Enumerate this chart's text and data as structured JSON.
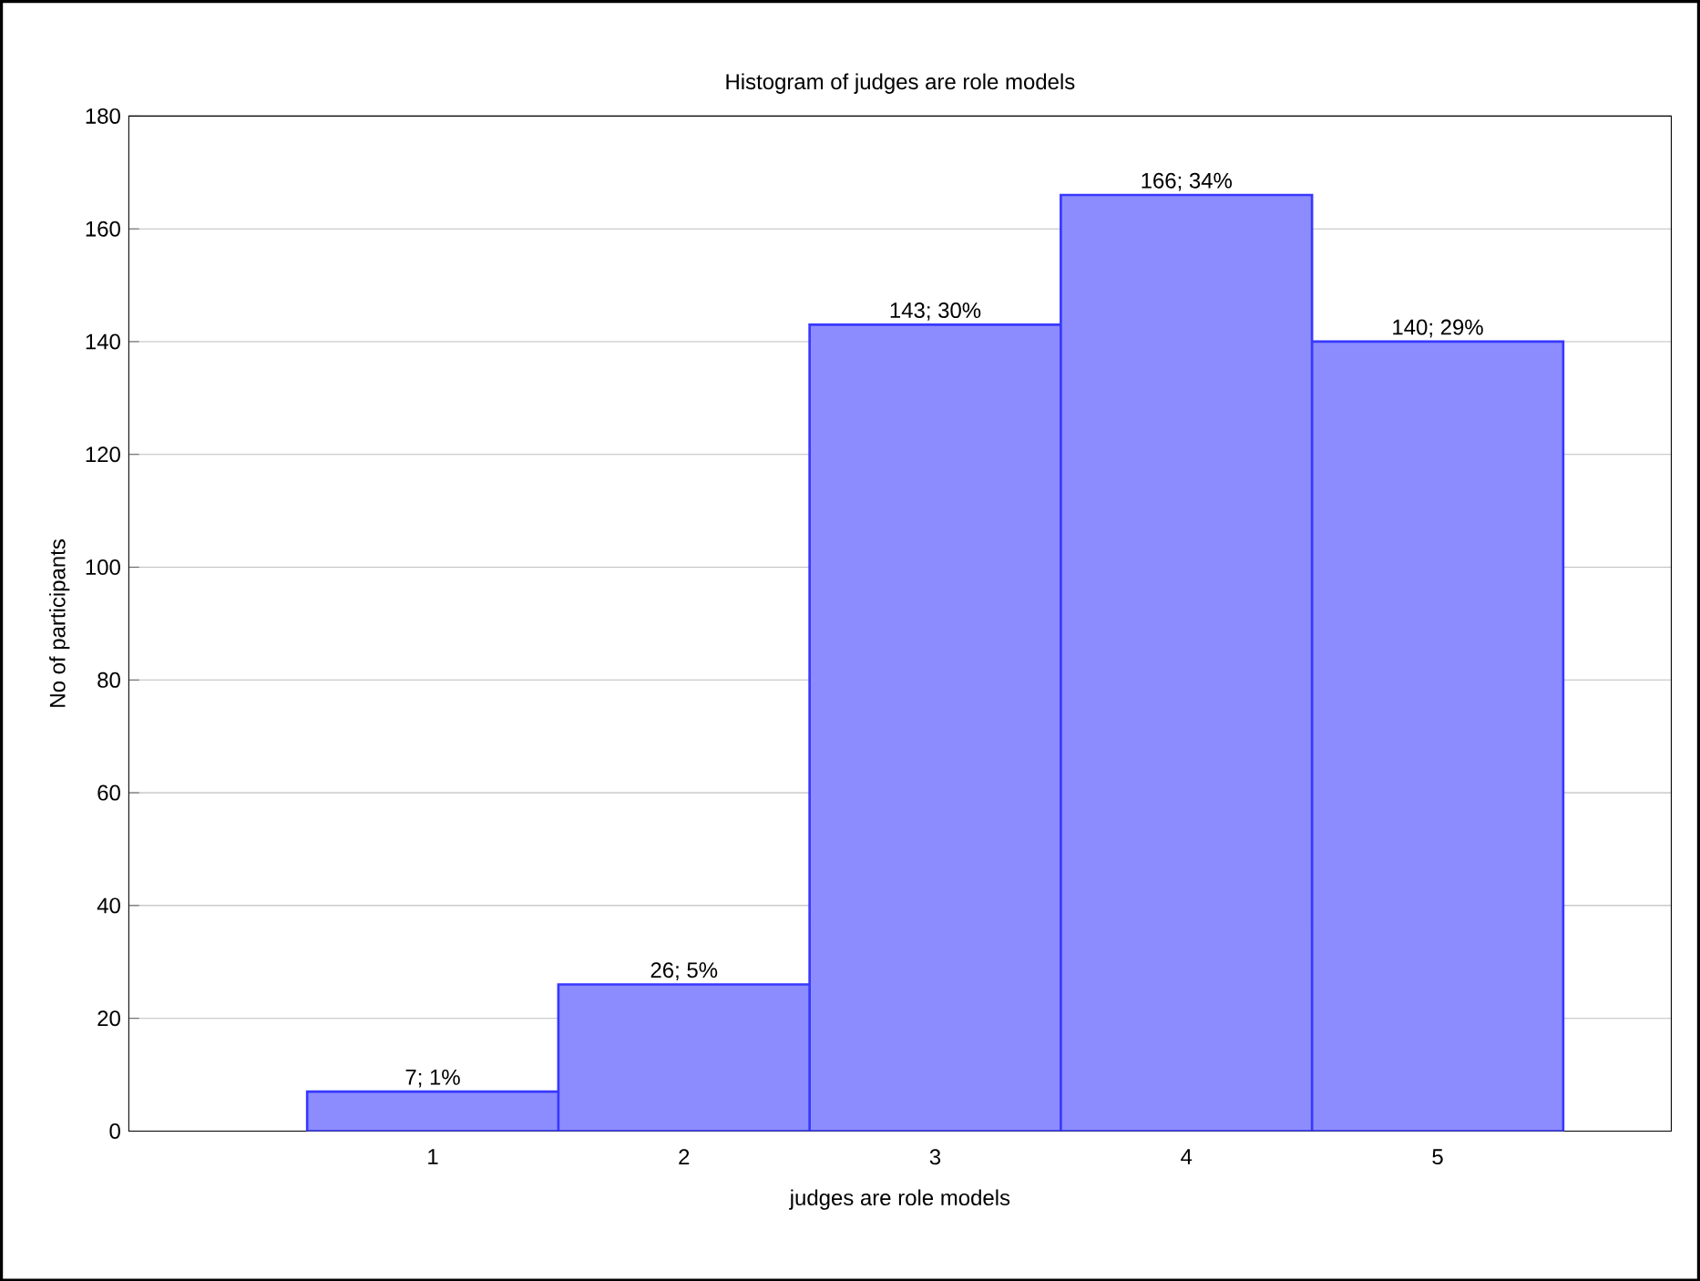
{
  "chart_data": {
    "type": "bar",
    "title": "Histogram of judges are role models",
    "xlabel": "judges are role models",
    "ylabel": "No of participants",
    "categories": [
      "1",
      "2",
      "3",
      "4",
      "5"
    ],
    "values": [
      7,
      26,
      143,
      166,
      140
    ],
    "value_labels": [
      "7; 1%",
      "26; 5%",
      "143; 30%",
      "166; 34%",
      "140; 29%"
    ],
    "color": "#8c8cff",
    "ylim": [
      0,
      180
    ],
    "yticks": [
      0,
      20,
      40,
      60,
      80,
      100,
      120,
      140,
      160,
      180
    ],
    "grid": "y"
  }
}
